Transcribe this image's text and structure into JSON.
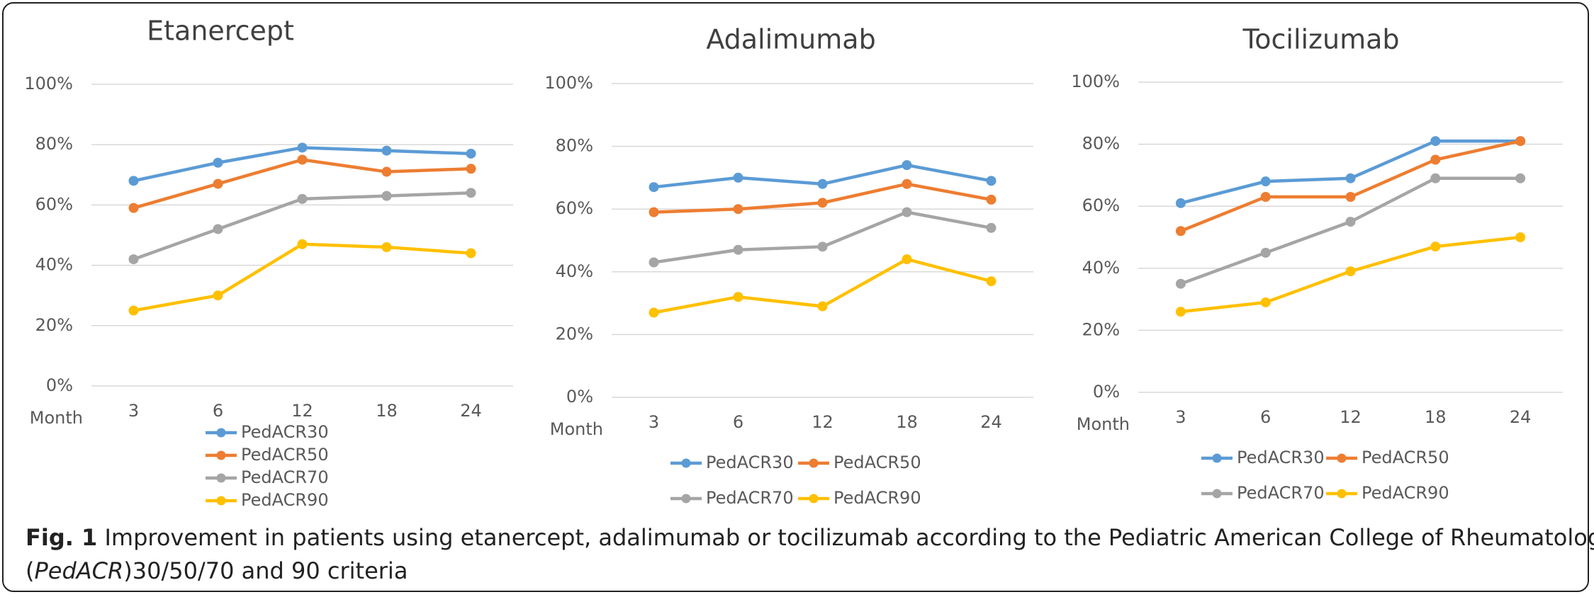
{
  "chart_data": [
    {
      "type": "line",
      "title": "Etanercept",
      "x_label": "Month",
      "categories": [
        "3",
        "6",
        "12",
        "18",
        "24"
      ],
      "ylim": [
        0,
        100
      ],
      "yticks": [
        {
          "value": 0,
          "label": "0%"
        },
        {
          "value": 20,
          "label": "20%"
        },
        {
          "value": 40,
          "label": "40%"
        },
        {
          "value": 60,
          "label": "60%"
        },
        {
          "value": 80,
          "label": "80%"
        },
        {
          "value": 100,
          "label": "100%"
        }
      ],
      "grid": true,
      "series": [
        {
          "name": "PedACR30",
          "color": "#5b9bd5",
          "values": [
            68,
            74,
            79,
            78,
            77
          ]
        },
        {
          "name": "PedACR50",
          "color": "#ed7d31",
          "values": [
            59,
            67,
            75,
            71,
            72
          ]
        },
        {
          "name": "PedACR70",
          "color": "#a5a5a5",
          "values": [
            42,
            52,
            62,
            63,
            64
          ]
        },
        {
          "name": "PedACR90",
          "color": "#ffc000",
          "values": [
            25,
            30,
            47,
            46,
            44
          ]
        }
      ]
    },
    {
      "type": "line",
      "title": "Adalimumab",
      "x_label": "Month",
      "categories": [
        "3",
        "6",
        "12",
        "18",
        "24"
      ],
      "ylim": [
        0,
        100
      ],
      "yticks": [
        {
          "value": 0,
          "label": "0%"
        },
        {
          "value": 20,
          "label": "20%"
        },
        {
          "value": 40,
          "label": "40%"
        },
        {
          "value": 60,
          "label": "60%"
        },
        {
          "value": 80,
          "label": "80%"
        },
        {
          "value": 100,
          "label": "100%"
        }
      ],
      "grid": true,
      "series": [
        {
          "name": "PedACR30",
          "color": "#5b9bd5",
          "values": [
            67,
            70,
            68,
            74,
            69
          ]
        },
        {
          "name": "PedACR50",
          "color": "#ed7d31",
          "values": [
            59,
            60,
            62,
            68,
            63
          ]
        },
        {
          "name": "PedACR70",
          "color": "#a5a5a5",
          "values": [
            43,
            47,
            48,
            59,
            54
          ]
        },
        {
          "name": "PedACR90",
          "color": "#ffc000",
          "values": [
            27,
            32,
            29,
            44,
            37
          ]
        }
      ]
    },
    {
      "type": "line",
      "title": "Tocilizumab",
      "x_label": "Month",
      "categories": [
        "3",
        "6",
        "12",
        "18",
        "24"
      ],
      "ylim": [
        0,
        100
      ],
      "yticks": [
        {
          "value": 0,
          "label": "0%"
        },
        {
          "value": 20,
          "label": "20%"
        },
        {
          "value": 40,
          "label": "40%"
        },
        {
          "value": 60,
          "label": "60%"
        },
        {
          "value": 80,
          "label": "80%"
        },
        {
          "value": 100,
          "label": "100%"
        }
      ],
      "grid": true,
      "series": [
        {
          "name": "PedACR30",
          "color": "#5b9bd5",
          "values": [
            61,
            68,
            69,
            81,
            81
          ]
        },
        {
          "name": "PedACR50",
          "color": "#ed7d31",
          "values": [
            52,
            63,
            63,
            75,
            81
          ]
        },
        {
          "name": "PedACR70",
          "color": "#a5a5a5",
          "values": [
            35,
            45,
            55,
            69,
            69
          ]
        },
        {
          "name": "PedACR90",
          "color": "#ffc000",
          "values": [
            26,
            29,
            39,
            47,
            50
          ]
        }
      ]
    }
  ],
  "caption": {
    "label": "Fig. 1",
    "text": "Improvement in patients using etanercept, adalimumab or tocilizumab according to the Pediatric American College of Rheumatology",
    "line2": [
      "(",
      "PedACR",
      ")30/50/70 and 90 criteria"
    ]
  }
}
